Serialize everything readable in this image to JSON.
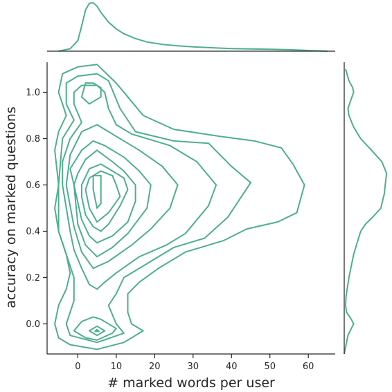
{
  "chart_data": {
    "type": "kde-joint",
    "xlabel": "# marked words per user",
    "ylabel": "accuracy on marked questions",
    "xlim": [
      -8,
      67
    ],
    "ylim": [
      -0.13,
      1.13
    ],
    "xticks": [
      0,
      10,
      20,
      30,
      40,
      50,
      60
    ],
    "yticks": [
      0.0,
      0.2,
      0.4,
      0.6,
      0.8,
      1.0
    ],
    "color": "#4daf8c",
    "marginal_x": {
      "x": [
        -5,
        -2,
        0,
        1,
        2,
        3,
        4,
        5,
        6,
        8,
        10,
        12,
        15,
        18,
        22,
        26,
        30,
        35,
        40,
        45,
        50,
        55,
        60,
        65
      ],
      "density": [
        0.0,
        0.05,
        0.22,
        0.52,
        0.85,
        0.99,
        1.0,
        0.93,
        0.8,
        0.6,
        0.46,
        0.36,
        0.26,
        0.19,
        0.14,
        0.11,
        0.09,
        0.07,
        0.055,
        0.045,
        0.04,
        0.03,
        0.015,
        0.0
      ]
    },
    "marginal_y": {
      "y": [
        -0.13,
        -0.1,
        -0.05,
        -0.02,
        0.0,
        0.02,
        0.05,
        0.08,
        0.12,
        0.2,
        0.3,
        0.4,
        0.43,
        0.46,
        0.5,
        0.52,
        0.56,
        0.6,
        0.65,
        0.7,
        0.75,
        0.8,
        0.85,
        0.9,
        0.93,
        0.96,
        1.0,
        1.02,
        1.05,
        1.1
      ],
      "density": [
        0.0,
        0.03,
        0.08,
        0.15,
        0.2,
        0.15,
        0.05,
        0.03,
        0.04,
        0.1,
        0.2,
        0.35,
        0.45,
        0.6,
        0.78,
        0.8,
        0.85,
        0.87,
        0.9,
        0.8,
        0.58,
        0.35,
        0.2,
        0.1,
        0.08,
        0.13,
        0.2,
        0.18,
        0.1,
        0.03
      ]
    },
    "contours": [
      [
        [
          -5,
          0.6
        ],
        [
          -6,
          0.5
        ],
        [
          -5,
          0.4
        ],
        [
          -3,
          0.3
        ],
        [
          -2,
          0.22
        ],
        [
          -3,
          0.15
        ],
        [
          -5,
          0.08
        ],
        [
          -6,
          0.0
        ],
        [
          -5,
          -0.06
        ],
        [
          -2,
          -0.09
        ],
        [
          5,
          -0.11
        ],
        [
          12,
          -0.08
        ],
        [
          17,
          -0.03
        ],
        [
          14,
          0.0
        ],
        [
          13,
          0.05
        ],
        [
          13,
          0.13
        ],
        [
          16,
          0.18
        ],
        [
          21,
          0.24
        ],
        [
          28,
          0.31
        ],
        [
          38,
          0.36
        ],
        [
          44,
          0.41
        ],
        [
          52,
          0.44
        ],
        [
          57,
          0.48
        ],
        [
          59,
          0.6
        ],
        [
          56,
          0.69
        ],
        [
          53,
          0.76
        ],
        [
          46,
          0.79
        ],
        [
          37,
          0.81
        ],
        [
          25,
          0.84
        ],
        [
          17,
          0.9
        ],
        [
          13,
          0.98
        ],
        [
          10,
          1.04
        ],
        [
          5,
          1.12
        ],
        [
          0,
          1.11
        ],
        [
          -4,
          1.08
        ],
        [
          -5,
          1.0
        ],
        [
          -4,
          0.95
        ],
        [
          -3,
          0.9
        ],
        [
          -5,
          0.83
        ],
        [
          -6,
          0.75
        ],
        [
          -5,
          0.6
        ]
      ],
      [
        [
          -5,
          0.4
        ],
        [
          -3,
          0.3
        ],
        [
          -1,
          0.2
        ],
        [
          -1,
          0.1
        ],
        [
          -3,
          0.0
        ],
        [
          -2,
          -0.05
        ],
        [
          5,
          -0.08
        ],
        [
          12,
          -0.04
        ],
        [
          10,
          0.0
        ],
        [
          8,
          0.08
        ],
        [
          10,
          0.13
        ],
        [
          12,
          0.2
        ],
        [
          18,
          0.26
        ],
        [
          25,
          0.33
        ],
        [
          33,
          0.37
        ],
        [
          39,
          0.46
        ],
        [
          45,
          0.61
        ],
        [
          40,
          0.68
        ],
        [
          34,
          0.78
        ],
        [
          25,
          0.79
        ],
        [
          15,
          0.83
        ],
        [
          11,
          0.93
        ],
        [
          8,
          1.05
        ],
        [
          5,
          1.08
        ],
        [
          0,
          1.07
        ],
        [
          -3,
          1.04
        ],
        [
          -3,
          0.95
        ],
        [
          -1,
          0.88
        ],
        [
          -4,
          0.8
        ],
        [
          -5,
          0.6
        ],
        [
          -5,
          0.4
        ]
      ],
      [
        [
          -2,
          0.4
        ],
        [
          -1,
          0.32
        ],
        [
          1,
          0.24
        ],
        [
          3,
          0.17
        ],
        [
          5,
          0.15
        ],
        [
          7,
          0.18
        ],
        [
          10,
          0.22
        ],
        [
          16,
          0.29
        ],
        [
          23,
          0.34
        ],
        [
          28,
          0.39
        ],
        [
          34,
          0.51
        ],
        [
          36,
          0.6
        ],
        [
          31,
          0.7
        ],
        [
          24,
          0.77
        ],
        [
          14,
          0.82
        ],
        [
          10,
          0.86
        ],
        [
          8,
          0.93
        ],
        [
          7,
          1.0
        ],
        [
          5,
          1.03
        ],
        [
          1,
          1.03
        ],
        [
          -1,
          1.0
        ],
        [
          -1,
          0.95
        ],
        [
          1,
          0.87
        ],
        [
          -2,
          0.8
        ],
        [
          -4,
          0.7
        ],
        [
          -4,
          0.6
        ],
        [
          -2,
          0.4
        ]
      ],
      [
        [
          -1,
          0.42
        ],
        [
          1,
          0.31
        ],
        [
          4,
          0.24
        ],
        [
          8,
          0.27
        ],
        [
          14,
          0.34
        ],
        [
          19,
          0.41
        ],
        [
          24,
          0.5
        ],
        [
          26,
          0.6
        ],
        [
          22,
          0.68
        ],
        [
          16,
          0.75
        ],
        [
          10,
          0.81
        ],
        [
          5,
          0.86
        ],
        [
          1,
          0.83
        ],
        [
          -2,
          0.73
        ],
        [
          -3,
          0.6
        ],
        [
          -1,
          0.42
        ]
      ],
      [
        [
          0,
          0.43
        ],
        [
          2,
          0.34
        ],
        [
          5,
          0.29
        ],
        [
          9,
          0.33
        ],
        [
          13,
          0.39
        ],
        [
          18,
          0.5
        ],
        [
          19,
          0.6
        ],
        [
          16,
          0.66
        ],
        [
          12,
          0.72
        ],
        [
          7,
          0.77
        ],
        [
          4,
          0.79
        ],
        [
          1,
          0.75
        ],
        [
          -2,
          0.67
        ],
        [
          -1,
          0.6
        ],
        [
          0,
          0.43
        ]
      ],
      [
        [
          1,
          0.45
        ],
        [
          3,
          0.38
        ],
        [
          5,
          0.35
        ],
        [
          9,
          0.38
        ],
        [
          13,
          0.44
        ],
        [
          15,
          0.53
        ],
        [
          15,
          0.6
        ],
        [
          12,
          0.66
        ],
        [
          9,
          0.7
        ],
        [
          5,
          0.75
        ],
        [
          2,
          0.71
        ],
        [
          0,
          0.65
        ],
        [
          -1,
          0.6
        ],
        [
          1,
          0.45
        ]
      ],
      [
        [
          2,
          0.47
        ],
        [
          4,
          0.42
        ],
        [
          6,
          0.4
        ],
        [
          8,
          0.43
        ],
        [
          11,
          0.51
        ],
        [
          13,
          0.58
        ],
        [
          12,
          0.63
        ],
        [
          9,
          0.66
        ],
        [
          6,
          0.69
        ],
        [
          3,
          0.67
        ],
        [
          1,
          0.6
        ],
        [
          1,
          0.55
        ],
        [
          2,
          0.47
        ]
      ],
      [
        [
          3,
          0.5
        ],
        [
          5,
          0.44
        ],
        [
          8,
          0.48
        ],
        [
          11,
          0.55
        ],
        [
          10,
          0.6
        ],
        [
          9,
          0.64
        ],
        [
          6,
          0.66
        ],
        [
          3,
          0.63
        ],
        [
          2,
          0.58
        ],
        [
          3,
          0.5
        ]
      ],
      [
        [
          5,
          0.5
        ],
        [
          6,
          0.52
        ],
        [
          6,
          0.6
        ],
        [
          6,
          0.64
        ],
        [
          4,
          0.64
        ],
        [
          4,
          0.58
        ],
        [
          5,
          0.5
        ]
      ],
      [
        [
          1,
          0.98
        ],
        [
          3,
          0.95
        ],
        [
          6,
          0.98
        ],
        [
          6,
          1.02
        ],
        [
          4,
          1.04
        ],
        [
          2,
          1.04
        ],
        [
          1,
          0.98
        ]
      ],
      [
        [
          -1,
          -0.03
        ],
        [
          2,
          -0.06
        ],
        [
          5,
          -0.07
        ],
        [
          9,
          -0.04
        ],
        [
          10,
          -0.02
        ],
        [
          6,
          0.02
        ],
        [
          4,
          0.03
        ],
        [
          1,
          0.01
        ],
        [
          -1,
          -0.03
        ]
      ],
      [
        [
          3,
          -0.03
        ],
        [
          5,
          -0.05
        ],
        [
          7,
          -0.03
        ],
        [
          5,
          -0.01
        ],
        [
          3,
          -0.03
        ]
      ],
      [
        [
          4.5,
          -0.032
        ],
        [
          5.5,
          -0.032
        ],
        [
          5,
          -0.025
        ],
        [
          4.5,
          -0.032
        ]
      ]
    ]
  }
}
